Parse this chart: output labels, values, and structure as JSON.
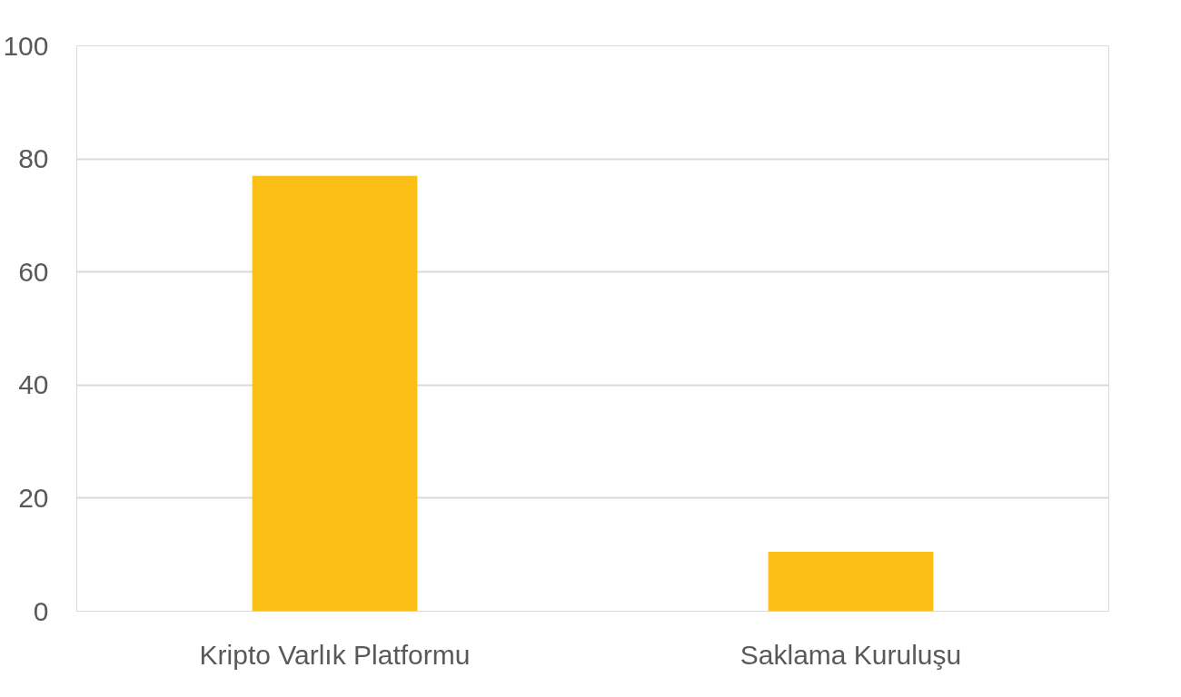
{
  "chart_data": {
    "type": "bar",
    "categories": [
      "Kripto Varlık Platformu",
      "Saklama Kuruluşu"
    ],
    "values": [
      77,
      10.5
    ],
    "color": "#fbbf16",
    "ylim": [
      0,
      100
    ],
    "yticks": [
      0,
      20,
      40,
      60,
      80,
      100
    ],
    "grid": "y"
  }
}
